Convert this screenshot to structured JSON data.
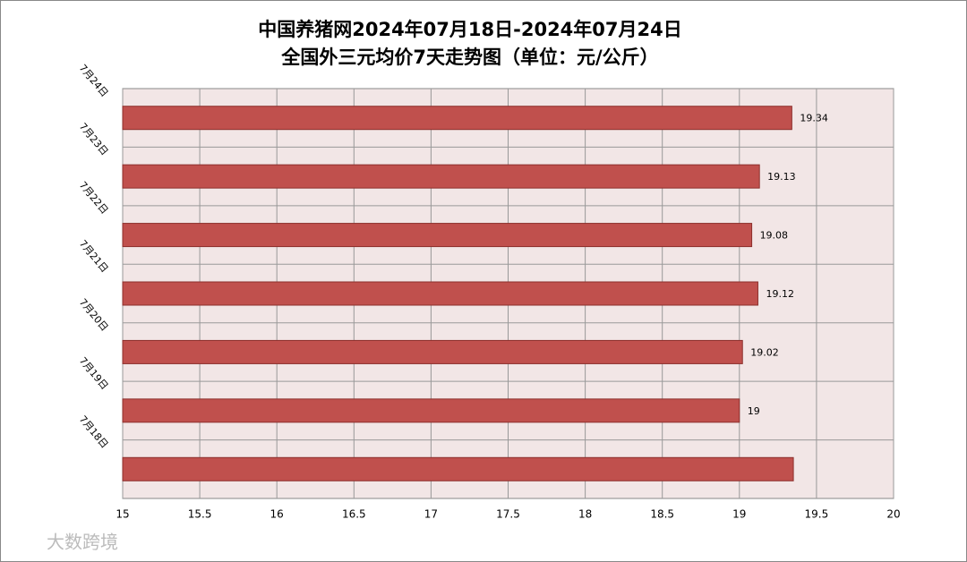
{
  "chart_data": {
    "type": "bar",
    "orientation": "horizontal",
    "title": [
      "中国养猪网2024年07月18日-2024年07月24日",
      "全国外三元均价7天走势图（单位：元/公斤）"
    ],
    "categories": [
      "7月24日",
      "7月23日",
      "7月22日",
      "7月21日",
      "7月20日",
      "7月19日",
      "7月18日"
    ],
    "values": [
      19.34,
      19.13,
      19.08,
      19.12,
      19.02,
      19,
      19.35
    ],
    "value_labels": [
      "19.34",
      "19.13",
      "19.08",
      "19.12",
      "19.02",
      "19",
      null
    ],
    "color": "#c0504d",
    "xlim": [
      15,
      20
    ],
    "xticks": [
      15,
      15.5,
      16,
      16.5,
      17,
      17.5,
      18,
      18.5,
      19,
      19.5,
      20
    ],
    "grid": true
  },
  "watermark": "大数跨境"
}
